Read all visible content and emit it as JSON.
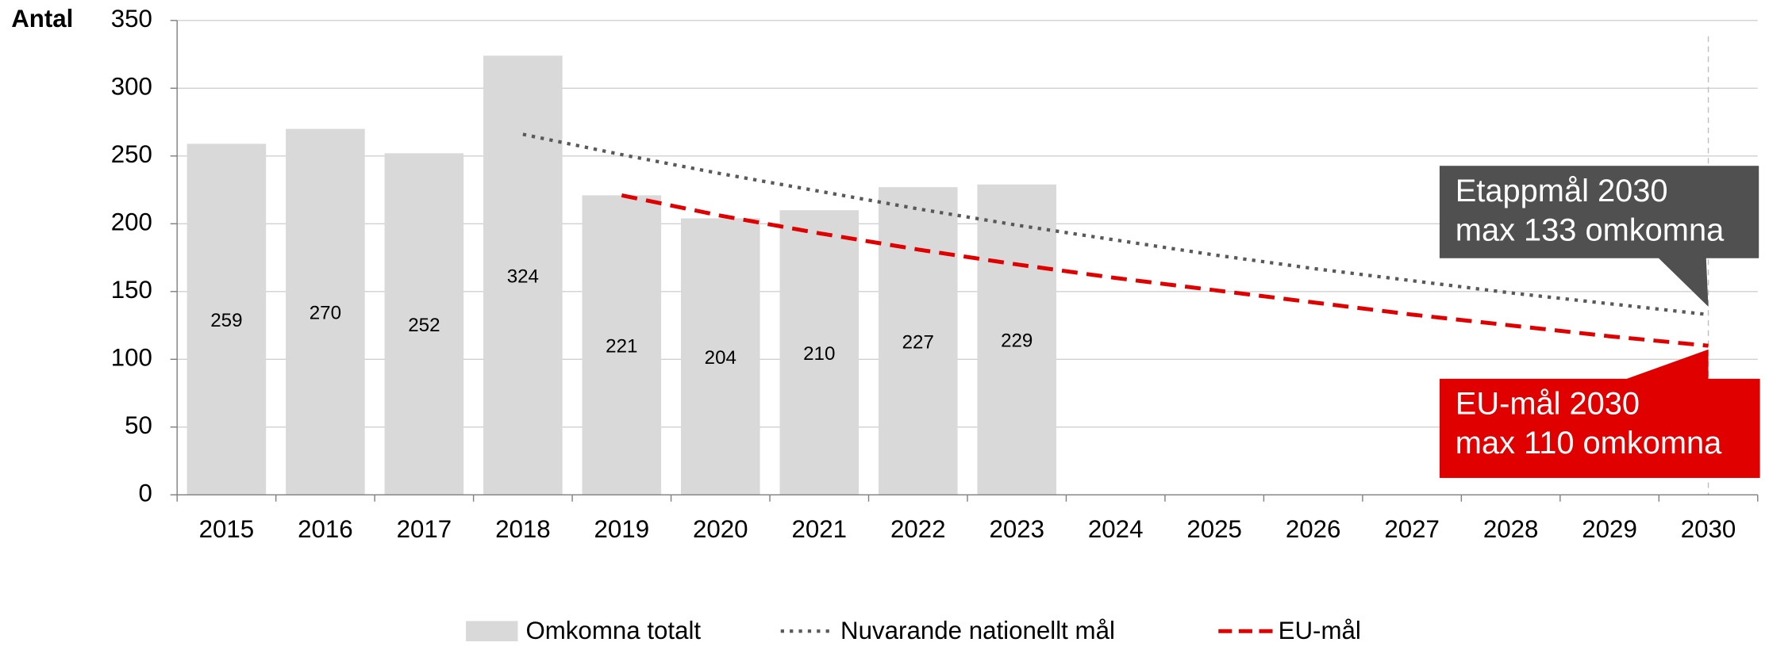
{
  "chart_data": {
    "type": "bar",
    "y_label": "Antal",
    "categories": [
      "2015",
      "2016",
      "2017",
      "2018",
      "2019",
      "2020",
      "2021",
      "2022",
      "2023",
      "2024",
      "2025",
      "2026",
      "2027",
      "2028",
      "2029",
      "2030"
    ],
    "ylim": [
      0,
      350
    ],
    "yticks": [
      0,
      50,
      100,
      150,
      200,
      250,
      300,
      350
    ],
    "grid": true,
    "series": [
      {
        "name": "Omkomna totalt",
        "type": "bar",
        "color": "#d9d9d9",
        "values": [
          259,
          270,
          252,
          324,
          221,
          204,
          210,
          227,
          229,
          null,
          null,
          null,
          null,
          null,
          null,
          null
        ]
      },
      {
        "name": "Nuvarande nationellt mål",
        "type": "line",
        "style": "dotted",
        "color": "#595959",
        "values": [
          null,
          null,
          null,
          266,
          251,
          237,
          224,
          211,
          199,
          188,
          177,
          167,
          158,
          149,
          141,
          133
        ]
      },
      {
        "name": "EU-mål",
        "type": "line",
        "style": "dashed",
        "color": "#e00000",
        "values": [
          null,
          null,
          null,
          null,
          221,
          206,
          193,
          181,
          170,
          160,
          151,
          142,
          133,
          125,
          117,
          110
        ]
      }
    ],
    "annotations": [
      {
        "lines": [
          "Etappmål 2030",
          "max 133 omkomna"
        ],
        "color": "#505050"
      },
      {
        "lines": [
          "EU-mål 2030",
          "max 110 omkomna"
        ],
        "color": "#e00000"
      }
    ],
    "legend": "bottom"
  }
}
